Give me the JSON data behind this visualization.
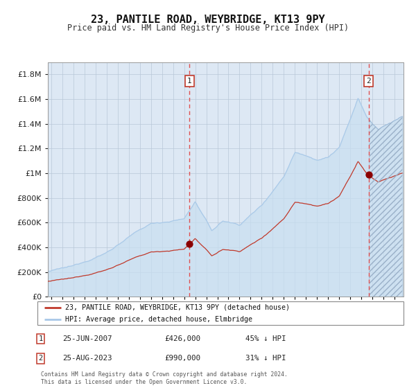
{
  "title": "23, PANTILE ROAD, WEYBRIDGE, KT13 9PY",
  "subtitle": "Price paid vs. HM Land Registry's House Price Index (HPI)",
  "legend_line1": "23, PANTILE ROAD, WEYBRIDGE, KT13 9PY (detached house)",
  "legend_line2": "HPI: Average price, detached house, Elmbridge",
  "annotation1_label": "1",
  "annotation1_date": "25-JUN-2007",
  "annotation1_price": "£426,000",
  "annotation1_hpi": "45% ↓ HPI",
  "annotation2_label": "2",
  "annotation2_date": "25-AUG-2023",
  "annotation2_price": "£990,000",
  "annotation2_hpi": "31% ↓ HPI",
  "purchase1_year": 2007.49,
  "purchase1_value": 426000,
  "purchase2_year": 2023.65,
  "purchase2_value": 990000,
  "hpi_color": "#a8c8e8",
  "hpi_fill_color": "#c8dff0",
  "price_color": "#c0392b",
  "dot_color": "#8b0000",
  "vline_color": "#e05050",
  "grid_color": "#b8c8d8",
  "plot_bg": "#dde8f4",
  "hatch_color": "#9ab0c8",
  "footer": "Contains HM Land Registry data © Crown copyright and database right 2024.\nThis data is licensed under the Open Government Licence v3.0.",
  "ylim": [
    0,
    1900000
  ],
  "xlim_start": 1994.7,
  "xlim_end": 2026.8,
  "figsize": [
    6.0,
    5.6
  ],
  "dpi": 100
}
